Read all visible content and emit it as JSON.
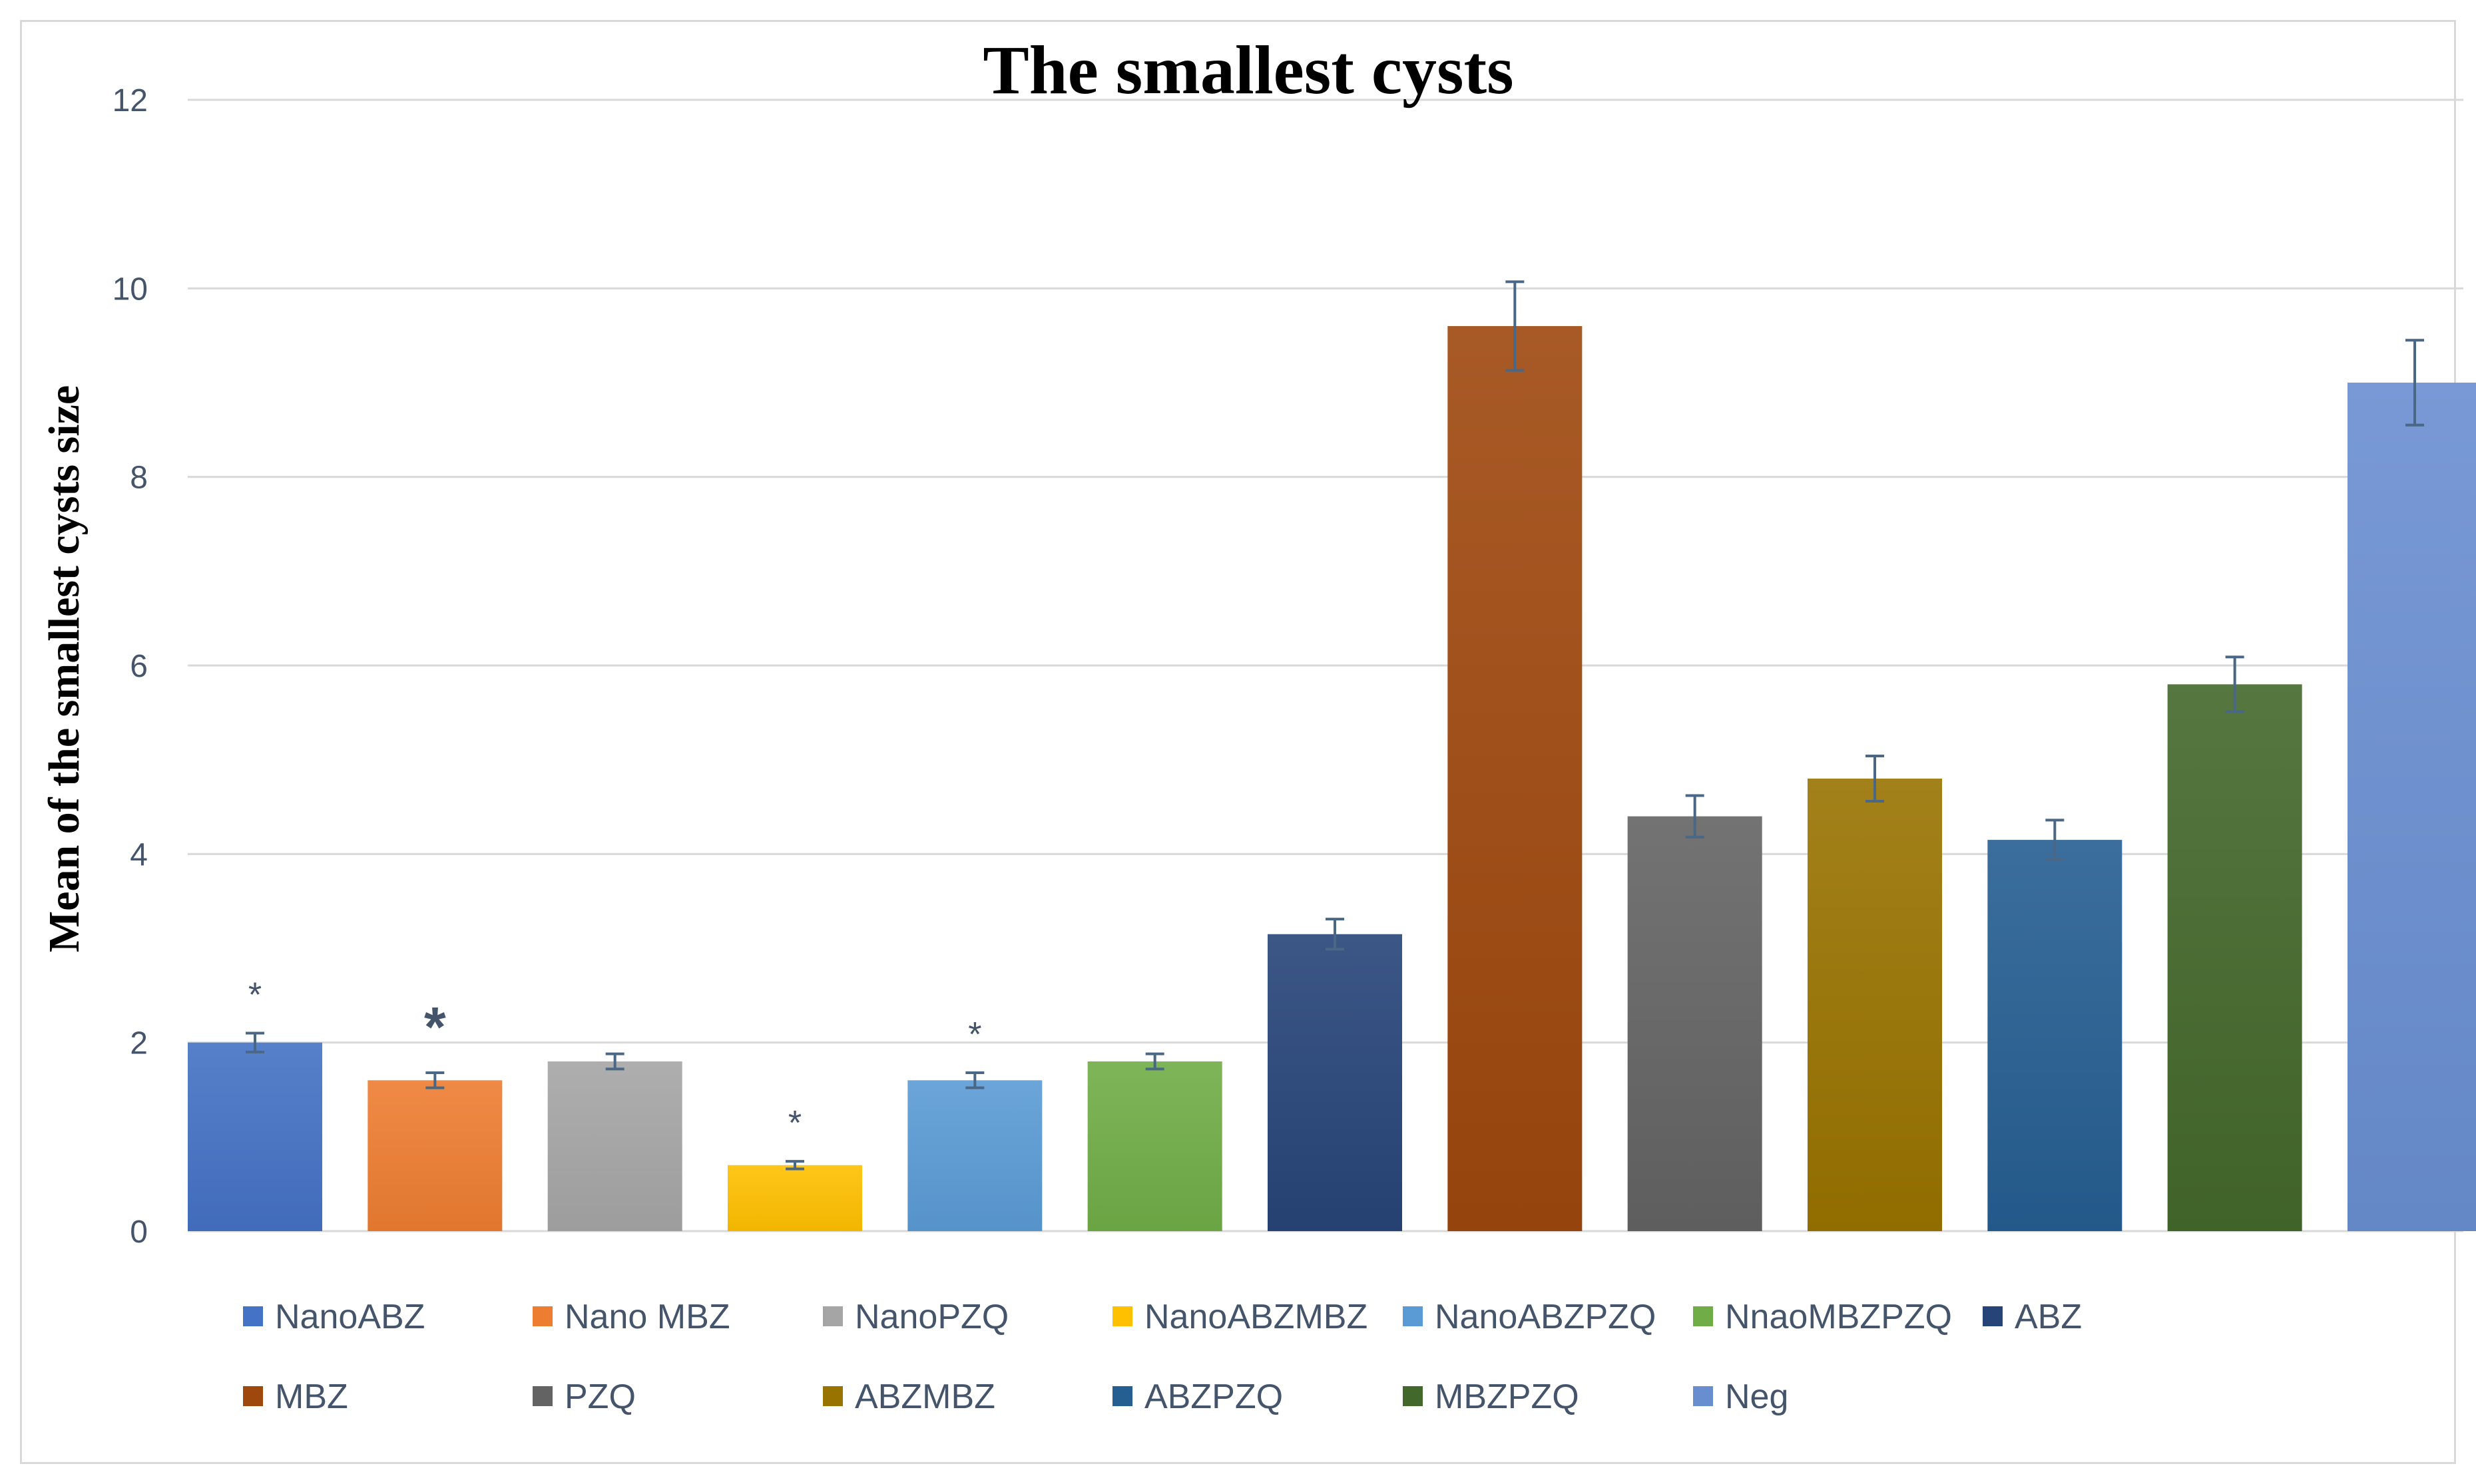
{
  "chart_data": {
    "type": "bar",
    "title": "The smallest cysts",
    "xlabel": "",
    "ylabel": "Mean of the smallest cysts size",
    "ylim": [
      0,
      12
    ],
    "yticks": [
      0,
      2,
      4,
      6,
      8,
      10,
      12
    ],
    "grid": true,
    "legend_position": "bottom",
    "categories": [
      "NanoABZ",
      "Nano MBZ",
      "NanoPZQ",
      "NanoABZMBZ",
      "NanoABZPZQ",
      "NnaoMBZPZQ",
      "ABZ",
      "MBZ",
      "PZQ",
      "ABZMBZ",
      "ABZPZQ",
      "MBZPZQ",
      "Neg"
    ],
    "values": [
      2.0,
      1.6,
      1.8,
      0.7,
      1.6,
      1.8,
      3.15,
      9.6,
      4.4,
      4.8,
      4.15,
      5.8,
      9.0
    ],
    "errors": [
      0.1,
      0.08,
      0.08,
      0.04,
      0.08,
      0.08,
      0.16,
      0.47,
      0.22,
      0.24,
      0.21,
      0.29,
      0.45
    ],
    "colors": [
      "#4472c4",
      "#ed7d31",
      "#a5a5a5",
      "#ffc000",
      "#5b9bd5",
      "#70ad47",
      "#264478",
      "#9e480e",
      "#636363",
      "#997300",
      "#255e91",
      "#43682b",
      "#698ed0"
    ],
    "annotations": [
      "*",
      "*",
      "",
      "*",
      "*",
      "",
      "",
      "",
      "",
      "",
      "",
      "",
      ""
    ]
  }
}
